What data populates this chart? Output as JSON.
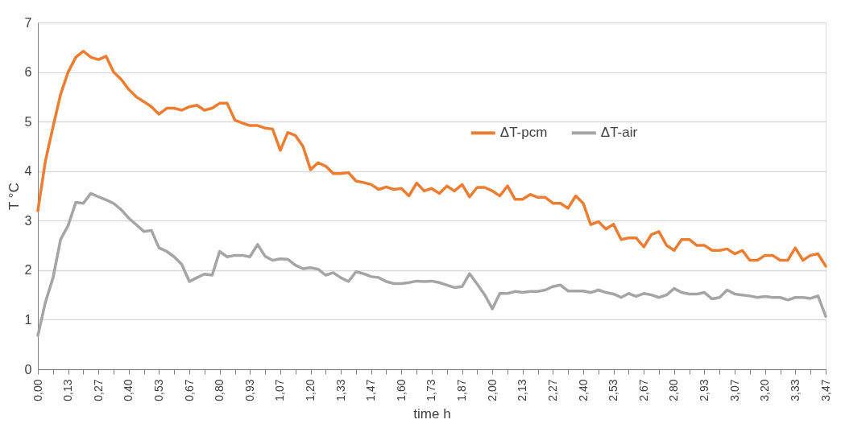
{
  "chart_data": {
    "type": "line",
    "xlabel": "time h",
    "ylabel": "T °C",
    "x": [
      0,
      0.033,
      0.067,
      0.1,
      0.133,
      0.167,
      0.2,
      0.233,
      0.267,
      0.3,
      0.333,
      0.367,
      0.4,
      0.433,
      0.467,
      0.5,
      0.533,
      0.567,
      0.6,
      0.633,
      0.667,
      0.7,
      0.733,
      0.767,
      0.8,
      0.833,
      0.867,
      0.9,
      0.933,
      0.967,
      1,
      1.033,
      1.067,
      1.1,
      1.133,
      1.167,
      1.2,
      1.233,
      1.267,
      1.3,
      1.333,
      1.367,
      1.4,
      1.433,
      1.467,
      1.5,
      1.533,
      1.567,
      1.6,
      1.633,
      1.667,
      1.7,
      1.733,
      1.767,
      1.8,
      1.833,
      1.867,
      1.9,
      1.933,
      1.967,
      2,
      2.033,
      2.067,
      2.1,
      2.133,
      2.167,
      2.2,
      2.233,
      2.267,
      2.3,
      2.333,
      2.367,
      2.4,
      2.433,
      2.467,
      2.5,
      2.533,
      2.567,
      2.6,
      2.633,
      2.667,
      2.7,
      2.733,
      2.767,
      2.8,
      2.833,
      2.867,
      2.9,
      2.933,
      2.967,
      3,
      3.033,
      3.067,
      3.1,
      3.133,
      3.167,
      3.2,
      3.233,
      3.267,
      3.3,
      3.333,
      3.367,
      3.4,
      3.433,
      3.467
    ],
    "series": [
      {
        "name": "ΔT-pcm",
        "color": "#ed7d31",
        "values": [
          3.2,
          4.2,
          4.9,
          5.55,
          6.0,
          6.3,
          6.42,
          6.3,
          6.25,
          6.32,
          6.0,
          5.85,
          5.65,
          5.5,
          5.4,
          5.3,
          5.15,
          5.27,
          5.27,
          5.23,
          5.3,
          5.33,
          5.23,
          5.27,
          5.37,
          5.37,
          5.03,
          4.97,
          4.92,
          4.92,
          4.87,
          4.85,
          4.42,
          4.78,
          4.72,
          4.5,
          4.03,
          4.17,
          4.1,
          3.95,
          3.95,
          3.97,
          3.8,
          3.77,
          3.73,
          3.63,
          3.68,
          3.63,
          3.65,
          3.5,
          3.76,
          3.6,
          3.65,
          3.55,
          3.7,
          3.6,
          3.73,
          3.48,
          3.67,
          3.67,
          3.6,
          3.5,
          3.7,
          3.43,
          3.43,
          3.53,
          3.47,
          3.47,
          3.35,
          3.35,
          3.25,
          3.5,
          3.35,
          2.92,
          2.98,
          2.83,
          2.93,
          2.62,
          2.65,
          2.65,
          2.47,
          2.72,
          2.78,
          2.5,
          2.4,
          2.62,
          2.62,
          2.5,
          2.5,
          2.4,
          2.4,
          2.43,
          2.33,
          2.4,
          2.2,
          2.2,
          2.3,
          2.3,
          2.2,
          2.2,
          2.45,
          2.2,
          2.3,
          2.33,
          2.08
        ]
      },
      {
        "name": "ΔT-air",
        "color": "#a5a5a5",
        "values": [
          0.68,
          1.35,
          1.85,
          2.62,
          2.9,
          3.37,
          3.35,
          3.55,
          3.48,
          3.42,
          3.35,
          3.22,
          3.05,
          2.92,
          2.78,
          2.8,
          2.45,
          2.38,
          2.27,
          2.12,
          1.77,
          1.85,
          1.92,
          1.9,
          2.38,
          2.27,
          2.3,
          2.3,
          2.27,
          2.52,
          2.28,
          2.2,
          2.23,
          2.22,
          2.1,
          2.03,
          2.05,
          2.02,
          1.9,
          1.95,
          1.85,
          1.77,
          1.97,
          1.93,
          1.87,
          1.85,
          1.77,
          1.73,
          1.73,
          1.75,
          1.78,
          1.77,
          1.78,
          1.75,
          1.7,
          1.65,
          1.67,
          1.93,
          1.72,
          1.5,
          1.22,
          1.53,
          1.53,
          1.57,
          1.55,
          1.57,
          1.57,
          1.6,
          1.67,
          1.7,
          1.58,
          1.58,
          1.58,
          1.55,
          1.6,
          1.55,
          1.52,
          1.45,
          1.53,
          1.47,
          1.53,
          1.5,
          1.45,
          1.5,
          1.63,
          1.55,
          1.52,
          1.52,
          1.55,
          1.42,
          1.45,
          1.6,
          1.52,
          1.5,
          1.48,
          1.45,
          1.47,
          1.45,
          1.45,
          1.4,
          1.45,
          1.45,
          1.43,
          1.48,
          1.07
        ]
      }
    ],
    "xlim": [
      0,
      3.467
    ],
    "xticks": [
      {
        "value": 0,
        "label": "0,00"
      },
      {
        "value": 0.067,
        "label": null
      },
      {
        "value": 0.133,
        "label": "0,13"
      },
      {
        "value": 0.2,
        "label": null
      },
      {
        "value": 0.267,
        "label": "0,27"
      },
      {
        "value": 0.333,
        "label": null
      },
      {
        "value": 0.4,
        "label": "0,40"
      },
      {
        "value": 0.467,
        "label": null
      },
      {
        "value": 0.533,
        "label": "0,53"
      },
      {
        "value": 0.6,
        "label": null
      },
      {
        "value": 0.667,
        "label": "0,67"
      },
      {
        "value": 0.733,
        "label": null
      },
      {
        "value": 0.8,
        "label": "0,80"
      },
      {
        "value": 0.867,
        "label": null
      },
      {
        "value": 0.933,
        "label": "0,93"
      },
      {
        "value": 1,
        "label": null
      },
      {
        "value": 1.067,
        "label": "1,07"
      },
      {
        "value": 1.133,
        "label": null
      },
      {
        "value": 1.2,
        "label": "1,20"
      },
      {
        "value": 1.267,
        "label": null
      },
      {
        "value": 1.333,
        "label": "1,33"
      },
      {
        "value": 1.4,
        "label": null
      },
      {
        "value": 1.467,
        "label": "1,47"
      },
      {
        "value": 1.533,
        "label": null
      },
      {
        "value": 1.6,
        "label": "1,60"
      },
      {
        "value": 1.667,
        "label": null
      },
      {
        "value": 1.733,
        "label": "1,73"
      },
      {
        "value": 1.8,
        "label": null
      },
      {
        "value": 1.867,
        "label": "1,87"
      },
      {
        "value": 1.933,
        "label": null
      },
      {
        "value": 2,
        "label": "2,00"
      },
      {
        "value": 2.067,
        "label": null
      },
      {
        "value": 2.133,
        "label": "2,13"
      },
      {
        "value": 2.2,
        "label": null
      },
      {
        "value": 2.267,
        "label": "2,27"
      },
      {
        "value": 2.333,
        "label": null
      },
      {
        "value": 2.4,
        "label": "2,40"
      },
      {
        "value": 2.467,
        "label": null
      },
      {
        "value": 2.533,
        "label": "2,53"
      },
      {
        "value": 2.6,
        "label": null
      },
      {
        "value": 2.667,
        "label": "2,67"
      },
      {
        "value": 2.733,
        "label": null
      },
      {
        "value": 2.8,
        "label": "2,80"
      },
      {
        "value": 2.867,
        "label": null
      },
      {
        "value": 2.933,
        "label": "2,93"
      },
      {
        "value": 3,
        "label": null
      },
      {
        "value": 3.067,
        "label": "3,07"
      },
      {
        "value": 3.133,
        "label": null
      },
      {
        "value": 3.2,
        "label": "3,20"
      },
      {
        "value": 3.267,
        "label": null
      },
      {
        "value": 3.333,
        "label": "3,33"
      },
      {
        "value": 3.4,
        "label": null
      },
      {
        "value": 3.467,
        "label": "3,47"
      }
    ],
    "ylim": [
      0,
      7
    ],
    "yticks": [
      0,
      1,
      2,
      3,
      4,
      5,
      6,
      7
    ],
    "grid": "y",
    "legend": "right",
    "marker": "none",
    "line_style": "solid"
  }
}
